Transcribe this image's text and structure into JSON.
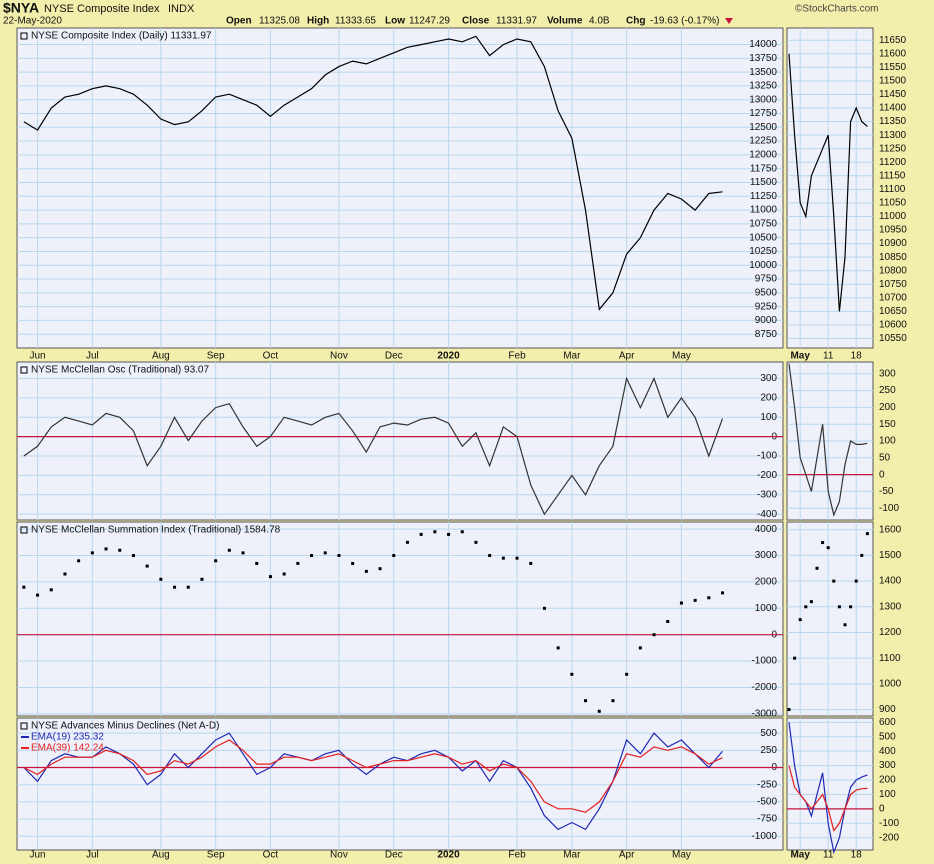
{
  "header": {
    "symbol": "$NYA",
    "name": "NYSE Composite Index",
    "exchange": "INDX",
    "date": "22-May-2020",
    "stats": [
      {
        "label": "Open",
        "value": "11325.08"
      },
      {
        "label": "High",
        "value": "11333.65"
      },
      {
        "label": "Low",
        "value": "11247.29"
      },
      {
        "label": "Close",
        "value": "11331.97"
      },
      {
        "label": "Volume",
        "value": "4.0B"
      },
      {
        "label": "Chg",
        "value": "-19.63 (-0.17%)"
      }
    ],
    "source": "©StockCharts.com"
  },
  "chart_data": [
    {
      "type": "line",
      "title": "NYSE Composite Index (Daily) 11331.97",
      "categories": [
        null,
        "Jun",
        null,
        null,
        null,
        "Jul",
        null,
        null,
        null,
        null,
        "Aug",
        null,
        null,
        null,
        "Sep",
        null,
        null,
        null,
        "Oct",
        null,
        null,
        null,
        null,
        "Nov",
        null,
        null,
        null,
        "Dec",
        null,
        null,
        null,
        "2020",
        null,
        null,
        null,
        null,
        "Feb",
        null,
        null,
        null,
        "Mar",
        null,
        null,
        null,
        "Apr",
        null,
        null,
        null,
        "May",
        null,
        null,
        null
      ],
      "series": [
        {
          "color": "#000000",
          "values": [
            12600,
            12450,
            12850,
            13050,
            13100,
            13200,
            13250,
            13200,
            13100,
            12900,
            12650,
            12550,
            12600,
            12800,
            13050,
            13100,
            13000,
            12900,
            12700,
            12900,
            13050,
            13200,
            13450,
            13600,
            13700,
            13650,
            13750,
            13850,
            13950,
            14000,
            14050,
            14100,
            14050,
            14150,
            13800,
            14000,
            14100,
            14050,
            13600,
            12800,
            12300,
            11000,
            9200,
            9500,
            10200,
            10500,
            11000,
            11300,
            11200,
            11000,
            11300,
            11331.97
          ]
        }
      ],
      "ylim": [
        8500,
        14300
      ],
      "yticks": [
        8750,
        9000,
        9250,
        9500,
        9750,
        10000,
        10250,
        10500,
        10750,
        11000,
        11250,
        11500,
        11750,
        12000,
        12250,
        12500,
        12750,
        13000,
        13250,
        13500,
        13750,
        14000
      ],
      "grid": true
    },
    {
      "type": "line",
      "categories": [
        null,
        null,
        "May",
        null,
        null,
        null,
        null,
        "11",
        null,
        null,
        null,
        null,
        "18",
        null,
        null
      ],
      "series": [
        {
          "color": "#000000",
          "values": [
            11600,
            11300,
            11050,
            11000,
            11150,
            11200,
            11250,
            11300,
            11000,
            10650,
            10850,
            11350,
            11400,
            11350,
            11331.97
          ]
        }
      ],
      "ylim": [
        10515,
        11695
      ],
      "yticks": [
        10550,
        10600,
        10650,
        10700,
        10750,
        10800,
        10850,
        10900,
        10950,
        11000,
        11050,
        11100,
        11150,
        11200,
        11250,
        11300,
        11350,
        11400,
        11450,
        11500,
        11550,
        11600,
        11650
      ],
      "grid": true
    },
    {
      "type": "line",
      "title": "NYSE McClellan Osc (Traditional) 93.07",
      "series": [
        {
          "color": "#333333",
          "values": [
            -100,
            -50,
            50,
            100,
            80,
            60,
            120,
            100,
            30,
            -150,
            -50,
            100,
            -20,
            80,
            150,
            170,
            50,
            -50,
            0,
            100,
            80,
            60,
            100,
            120,
            30,
            -80,
            50,
            70,
            60,
            90,
            100,
            70,
            -50,
            20,
            -150,
            50,
            0,
            -250,
            -400,
            -300,
            -200,
            -300,
            -150,
            -50,
            300,
            150,
            300,
            100,
            200,
            100,
            -100,
            93.07
          ]
        }
      ],
      "ylim": [
        -430,
        385
      ],
      "yticks": [
        -400,
        -300,
        -200,
        -100,
        0,
        100,
        200,
        300
      ],
      "grid": true,
      "refline": 0,
      "refline_color": "#c8143c"
    },
    {
      "type": "line",
      "series": [
        {
          "color": "#333333",
          "values": [
            330,
            200,
            50,
            0,
            -50,
            50,
            150,
            -50,
            -120,
            -80,
            30,
            100,
            90,
            90,
            93.07
          ]
        }
      ],
      "ylim": [
        -135,
        335
      ],
      "yticks": [
        -100,
        -50,
        0,
        50,
        100,
        150,
        200,
        250,
        300
      ],
      "grid": true,
      "refline": 0,
      "refline_color": "#c8143c"
    },
    {
      "type": "dot",
      "title": "NYSE McClellan Summation Index (Traditional) 1584.78",
      "series": [
        {
          "color": "#000000",
          "values": [
            1800,
            1500,
            1700,
            2300,
            2800,
            3100,
            3250,
            3200,
            3000,
            2600,
            2100,
            1800,
            1800,
            2100,
            2800,
            3200,
            3100,
            2700,
            2200,
            2300,
            2700,
            3000,
            3100,
            3000,
            2700,
            2400,
            2500,
            3000,
            3500,
            3800,
            3900,
            3800,
            3900,
            3500,
            3000,
            2900,
            2900,
            2700,
            1000,
            -500,
            -1500,
            -2500,
            -2900,
            -2500,
            -1500,
            -500,
            0,
            500,
            1200,
            1300,
            1400,
            1584.78
          ]
        }
      ],
      "ylim": [
        -3080,
        4270
      ],
      "yticks": [
        -3000,
        -2000,
        -1000,
        0,
        1000,
        2000,
        3000,
        4000
      ],
      "grid": true,
      "refline": 0,
      "refline_color": "#c8143c"
    },
    {
      "type": "dot",
      "series": [
        {
          "color": "#000000",
          "values": [
            900,
            1100,
            1250,
            1300,
            1320,
            1450,
            1550,
            1530,
            1400,
            1300,
            1230,
            1300,
            1400,
            1500,
            1584.78
          ]
        }
      ],
      "ylim": [
        875,
        1630
      ],
      "yticks": [
        900,
        1000,
        1100,
        1200,
        1300,
        1400,
        1500,
        1600
      ],
      "grid": true
    },
    {
      "type": "line",
      "title": "NYSE Advances Minus Declines (Net A-D)",
      "categories": [
        null,
        "Jun",
        null,
        null,
        null,
        "Jul",
        null,
        null,
        null,
        null,
        "Aug",
        null,
        null,
        null,
        "Sep",
        null,
        null,
        null,
        "Oct",
        null,
        null,
        null,
        null,
        "Nov",
        null,
        null,
        null,
        "Dec",
        null,
        null,
        null,
        "2020",
        null,
        null,
        null,
        null,
        "Feb",
        null,
        null,
        null,
        "Mar",
        null,
        null,
        null,
        "Apr",
        null,
        null,
        null,
        "May",
        null,
        null,
        null
      ],
      "series": [
        {
          "name": "EMA(19) 235.32",
          "color": "#1e28b4",
          "values": [
            0,
            -200,
            100,
            200,
            150,
            150,
            300,
            200,
            50,
            -250,
            -100,
            200,
            0,
            200,
            400,
            500,
            200,
            -100,
            0,
            200,
            150,
            100,
            200,
            250,
            50,
            -100,
            50,
            150,
            100,
            200,
            250,
            150,
            -50,
            100,
            -200,
            100,
            0,
            -300,
            -700,
            -900,
            -800,
            -900,
            -600,
            -200,
            400,
            200,
            500,
            300,
            400,
            200,
            0,
            235.32
          ]
        },
        {
          "name": "EMA(39) 142.24",
          "color": "#e61e1e",
          "values": [
            0,
            -100,
            50,
            150,
            150,
            150,
            250,
            200,
            100,
            -100,
            -50,
            100,
            50,
            150,
            300,
            400,
            250,
            50,
            50,
            150,
            150,
            100,
            150,
            200,
            100,
            0,
            50,
            100,
            100,
            150,
            200,
            150,
            50,
            100,
            -50,
            50,
            0,
            -200,
            -500,
            -600,
            -600,
            -650,
            -500,
            -200,
            200,
            150,
            300,
            250,
            300,
            200,
            50,
            142.24
          ]
        }
      ],
      "ylim": [
        -1200,
        720
      ],
      "yticks": [
        -1000,
        -750,
        -500,
        -250,
        0,
        250,
        500
      ],
      "grid": true,
      "refline": 0,
      "refline_color": "#c8143c"
    },
    {
      "type": "line",
      "categories": [
        null,
        null,
        "May",
        null,
        null,
        null,
        null,
        "11",
        null,
        null,
        null,
        null,
        "18",
        null,
        null
      ],
      "series": [
        {
          "color": "#1e28b4",
          "values": [
            600,
            300,
            100,
            50,
            -50,
            100,
            250,
            -100,
            -300,
            -200,
            0,
            150,
            200,
            220,
            235.32
          ]
        },
        {
          "color": "#e61e1e",
          "values": [
            300,
            150,
            100,
            50,
            0,
            50,
            100,
            0,
            -150,
            -100,
            0,
            100,
            130,
            140,
            142.24
          ]
        }
      ],
      "ylim": [
        -285,
        630
      ],
      "yticks": [
        -200,
        -100,
        0,
        100,
        200,
        300,
        400,
        500,
        600
      ],
      "grid": true,
      "refline": 0,
      "refline_color": "#c8143c"
    }
  ]
}
